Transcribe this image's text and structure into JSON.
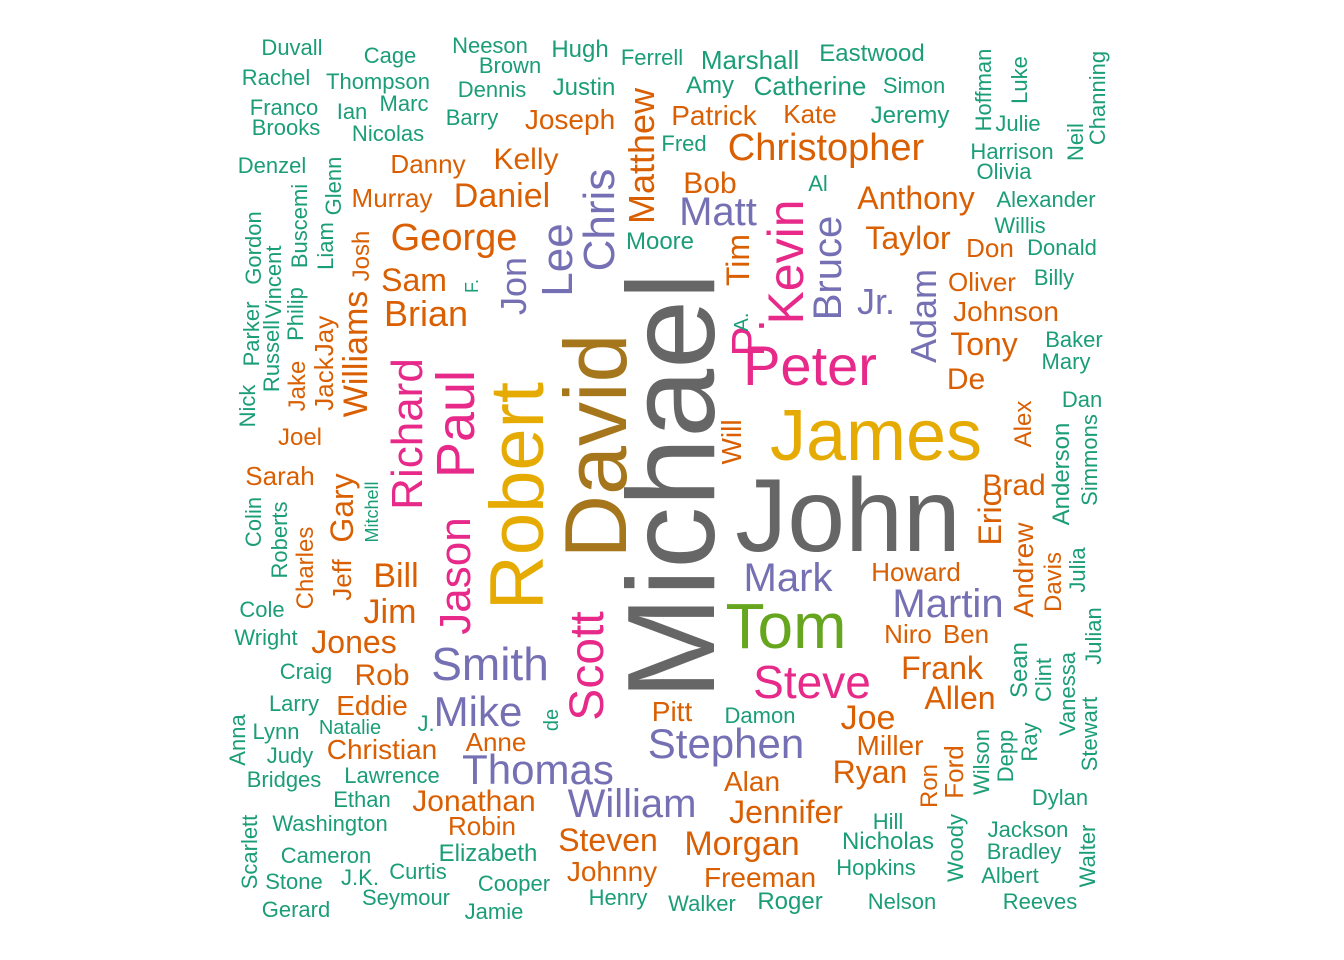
{
  "palette": {
    "c1": "#1b9e77",
    "c2": "#d95f02",
    "c3": "#7570b3",
    "c4": "#e7298a",
    "c5": "#66a61e",
    "c6": "#e6ab02",
    "c7": "#a6761d",
    "c8": "#666666"
  },
  "words": [
    {
      "text": "Michael",
      "c": "c8",
      "v": true
    },
    {
      "text": "John",
      "c": "c8",
      "v": false
    },
    {
      "text": "David",
      "c": "c7",
      "v": true
    },
    {
      "text": "James",
      "c": "c6",
      "v": false
    },
    {
      "text": "Robert",
      "c": "c6",
      "v": true
    },
    {
      "text": "Tom",
      "c": "c5",
      "v": false
    },
    {
      "text": "Peter",
      "c": "c4",
      "v": false
    },
    {
      "text": "Paul",
      "c": "c4",
      "v": true
    },
    {
      "text": "Jason",
      "c": "c4",
      "v": true
    },
    {
      "text": "Scott",
      "c": "c4",
      "v": true
    },
    {
      "text": "Richard",
      "c": "c4",
      "v": true
    },
    {
      "text": "Steve",
      "c": "c4",
      "v": false
    },
    {
      "text": "Kevin",
      "c": "c4",
      "v": true
    },
    {
      "text": "P.",
      "c": "c4",
      "v": true
    },
    {
      "text": "Chris",
      "c": "c3",
      "v": true
    },
    {
      "text": "Lee",
      "c": "c3",
      "v": true
    },
    {
      "text": "Jon",
      "c": "c3",
      "v": true
    },
    {
      "text": "Bruce",
      "c": "c3",
      "v": true
    },
    {
      "text": "Matt",
      "c": "c3",
      "v": false
    },
    {
      "text": "Jr.",
      "c": "c3",
      "v": false
    },
    {
      "text": "Adam",
      "c": "c3",
      "v": true
    },
    {
      "text": "Mark",
      "c": "c3",
      "v": false
    },
    {
      "text": "Martin",
      "c": "c3",
      "v": false
    },
    {
      "text": "Smith",
      "c": "c3",
      "v": false
    },
    {
      "text": "Mike",
      "c": "c3",
      "v": false
    },
    {
      "text": "Stephen",
      "c": "c3",
      "v": false
    },
    {
      "text": "Thomas",
      "c": "c3",
      "v": false
    },
    {
      "text": "William",
      "c": "c3",
      "v": false
    },
    {
      "text": "Christopher",
      "c": "c2",
      "v": false
    },
    {
      "text": "George",
      "c": "c2",
      "v": false
    },
    {
      "text": "Daniel",
      "c": "c2",
      "v": false
    },
    {
      "text": "Brian",
      "c": "c2",
      "v": false
    },
    {
      "text": "Sam",
      "c": "c2",
      "v": false
    },
    {
      "text": "Williams",
      "c": "c2",
      "v": true
    },
    {
      "text": "Bill",
      "c": "c2",
      "v": false
    },
    {
      "text": "Jim",
      "c": "c2",
      "v": false
    },
    {
      "text": "Gary",
      "c": "c2",
      "v": true
    },
    {
      "text": "Jones",
      "c": "c2",
      "v": false
    },
    {
      "text": "Rob",
      "c": "c2",
      "v": false
    },
    {
      "text": "Eddie",
      "c": "c2",
      "v": false
    },
    {
      "text": "Christian",
      "c": "c2",
      "v": false
    },
    {
      "text": "Anne",
      "c": "c2",
      "v": false
    },
    {
      "text": "Jonathan",
      "c": "c2",
      "v": false
    },
    {
      "text": "Robin",
      "c": "c2",
      "v": false
    },
    {
      "text": "Steven",
      "c": "c2",
      "v": false
    },
    {
      "text": "Johnny",
      "c": "c2",
      "v": false
    },
    {
      "text": "Morgan",
      "c": "c2",
      "v": false
    },
    {
      "text": "Freeman",
      "c": "c2",
      "v": false
    },
    {
      "text": "Jennifer",
      "c": "c2",
      "v": false
    },
    {
      "text": "Alan",
      "c": "c2",
      "v": false
    },
    {
      "text": "Ryan",
      "c": "c2",
      "v": false
    },
    {
      "text": "Miller",
      "c": "c2",
      "v": false
    },
    {
      "text": "Joe",
      "c": "c2",
      "v": false
    },
    {
      "text": "Pitt",
      "c": "c2",
      "v": false
    },
    {
      "text": "Allen",
      "c": "c2",
      "v": false
    },
    {
      "text": "Frank",
      "c": "c2",
      "v": false
    },
    {
      "text": "Niro",
      "c": "c2",
      "v": false
    },
    {
      "text": "Ben",
      "c": "c2",
      "v": false
    },
    {
      "text": "Howard",
      "c": "c2",
      "v": false
    },
    {
      "text": "Eric",
      "c": "c2",
      "v": true
    },
    {
      "text": "Brad",
      "c": "c2",
      "v": false
    },
    {
      "text": "De",
      "c": "c2",
      "v": false
    },
    {
      "text": "Tony",
      "c": "c2",
      "v": false
    },
    {
      "text": "Johnson",
      "c": "c2",
      "v": false
    },
    {
      "text": "Oliver",
      "c": "c2",
      "v": false
    },
    {
      "text": "Don",
      "c": "c2",
      "v": false
    },
    {
      "text": "Taylor",
      "c": "c2",
      "v": false
    },
    {
      "text": "Anthony",
      "c": "c2",
      "v": false
    },
    {
      "text": "Kate",
      "c": "c2",
      "v": false
    },
    {
      "text": "Patrick",
      "c": "c2",
      "v": false
    },
    {
      "text": "Matthew",
      "c": "c2",
      "v": true
    },
    {
      "text": "Bob",
      "c": "c2",
      "v": false
    },
    {
      "text": "Tim",
      "c": "c2",
      "v": true
    },
    {
      "text": "Will",
      "c": "c2",
      "v": true
    },
    {
      "text": "Joseph",
      "c": "c2",
      "v": false
    },
    {
      "text": "Kelly",
      "c": "c2",
      "v": false
    },
    {
      "text": "Danny",
      "c": "c2",
      "v": false
    },
    {
      "text": "Murray",
      "c": "c2",
      "v": false
    },
    {
      "text": "Josh",
      "c": "c2",
      "v": true
    },
    {
      "text": "Jay",
      "c": "c2",
      "v": true
    },
    {
      "text": "Jack",
      "c": "c2",
      "v": true
    },
    {
      "text": "Jake",
      "c": "c2",
      "v": true
    },
    {
      "text": "Joel",
      "c": "c2",
      "v": false
    },
    {
      "text": "Sarah",
      "c": "c2",
      "v": false
    },
    {
      "text": "Jeff",
      "c": "c2",
      "v": true
    },
    {
      "text": "Charles",
      "c": "c2",
      "v": true
    },
    {
      "text": "Andrew",
      "c": "c2",
      "v": true
    },
    {
      "text": "Davis",
      "c": "c2",
      "v": true
    },
    {
      "text": "Alex",
      "c": "c2",
      "v": true
    },
    {
      "text": "Ford",
      "c": "c2",
      "v": true
    },
    {
      "text": "Ron",
      "c": "c2",
      "v": true
    },
    {
      "text": "Duvall",
      "c": "c1",
      "v": false
    },
    {
      "text": "Cage",
      "c": "c1",
      "v": false
    },
    {
      "text": "Neeson",
      "c": "c1",
      "v": false
    },
    {
      "text": "Hugh",
      "c": "c1",
      "v": false
    },
    {
      "text": "Ferrell",
      "c": "c1",
      "v": false
    },
    {
      "text": "Marshall",
      "c": "c1",
      "v": false
    },
    {
      "text": "Eastwood",
      "c": "c1",
      "v": false
    },
    {
      "text": "Brown",
      "c": "c1",
      "v": false
    },
    {
      "text": "Rachel",
      "c": "c1",
      "v": false
    },
    {
      "text": "Thompson",
      "c": "c1",
      "v": false
    },
    {
      "text": "Dennis",
      "c": "c1",
      "v": false
    },
    {
      "text": "Justin",
      "c": "c1",
      "v": false
    },
    {
      "text": "Amy",
      "c": "c1",
      "v": false
    },
    {
      "text": "Catherine",
      "c": "c1",
      "v": false
    },
    {
      "text": "Simon",
      "c": "c1",
      "v": false
    },
    {
      "text": "Franco",
      "c": "c1",
      "v": false
    },
    {
      "text": "Marc",
      "c": "c1",
      "v": false
    },
    {
      "text": "Ian",
      "c": "c1",
      "v": false
    },
    {
      "text": "Barry",
      "c": "c1",
      "v": false
    },
    {
      "text": "Jeremy",
      "c": "c1",
      "v": false
    },
    {
      "text": "Brooks",
      "c": "c1",
      "v": false
    },
    {
      "text": "Nicolas",
      "c": "c1",
      "v": false
    },
    {
      "text": "Fred",
      "c": "c1",
      "v": false
    },
    {
      "text": "Denzel",
      "c": "c1",
      "v": false
    },
    {
      "text": "Al",
      "c": "c1",
      "v": false
    },
    {
      "text": "Moore",
      "c": "c1",
      "v": false
    },
    {
      "text": "Hoffman",
      "c": "c1",
      "v": true
    },
    {
      "text": "Luke",
      "c": "c1",
      "v": true
    },
    {
      "text": "Julie",
      "c": "c1",
      "v": false
    },
    {
      "text": "Channing",
      "c": "c1",
      "v": true
    },
    {
      "text": "Neil",
      "c": "c1",
      "v": true
    },
    {
      "text": "Harrison",
      "c": "c1",
      "v": false
    },
    {
      "text": "Olivia",
      "c": "c1",
      "v": false
    },
    {
      "text": "Alexander",
      "c": "c1",
      "v": false
    },
    {
      "text": "Willis",
      "c": "c1",
      "v": false
    },
    {
      "text": "Donald",
      "c": "c1",
      "v": false
    },
    {
      "text": "Billy",
      "c": "c1",
      "v": false
    },
    {
      "text": "Baker",
      "c": "c1",
      "v": false
    },
    {
      "text": "Mary",
      "c": "c1",
      "v": false
    },
    {
      "text": "Dan",
      "c": "c1",
      "v": false
    },
    {
      "text": "Anderson",
      "c": "c1",
      "v": true
    },
    {
      "text": "Simmons",
      "c": "c1",
      "v": true
    },
    {
      "text": "Julia",
      "c": "c1",
      "v": true
    },
    {
      "text": "Julian",
      "c": "c1",
      "v": true
    },
    {
      "text": "Sean",
      "c": "c1",
      "v": true
    },
    {
      "text": "Clint",
      "c": "c1",
      "v": true
    },
    {
      "text": "Vanessa",
      "c": "c1",
      "v": true
    },
    {
      "text": "Stewart",
      "c": "c1",
      "v": true
    },
    {
      "text": "Ray",
      "c": "c1",
      "v": true
    },
    {
      "text": "Depp",
      "c": "c1",
      "v": true
    },
    {
      "text": "Wilson",
      "c": "c1",
      "v": true
    },
    {
      "text": "Dylan",
      "c": "c1",
      "v": false
    },
    {
      "text": "Jackson",
      "c": "c1",
      "v": false
    },
    {
      "text": "Bradley",
      "c": "c1",
      "v": false
    },
    {
      "text": "Albert",
      "c": "c1",
      "v": false
    },
    {
      "text": "Walter",
      "c": "c1",
      "v": true
    },
    {
      "text": "Reeves",
      "c": "c1",
      "v": false
    },
    {
      "text": "Nelson",
      "c": "c1",
      "v": false
    },
    {
      "text": "Woody",
      "c": "c1",
      "v": true
    },
    {
      "text": "Hill",
      "c": "c1",
      "v": false
    },
    {
      "text": "Nicholas",
      "c": "c1",
      "v": false
    },
    {
      "text": "Hopkins",
      "c": "c1",
      "v": false
    },
    {
      "text": "Roger",
      "c": "c1",
      "v": false
    },
    {
      "text": "Walker",
      "c": "c1",
      "v": false
    },
    {
      "text": "Henry",
      "c": "c1",
      "v": false
    },
    {
      "text": "Damon",
      "c": "c1",
      "v": false
    },
    {
      "text": "Elizabeth",
      "c": "c1",
      "v": false
    },
    {
      "text": "Cooper",
      "c": "c1",
      "v": false
    },
    {
      "text": "Jamie",
      "c": "c1",
      "v": false
    },
    {
      "text": "Seymour",
      "c": "c1",
      "v": false
    },
    {
      "text": "Curtis",
      "c": "c1",
      "v": false
    },
    {
      "text": "J.K.",
      "c": "c1",
      "v": false
    },
    {
      "text": "Gerard",
      "c": "c1",
      "v": false
    },
    {
      "text": "Stone",
      "c": "c1",
      "v": false
    },
    {
      "text": "Cameron",
      "c": "c1",
      "v": false
    },
    {
      "text": "Scarlett",
      "c": "c1",
      "v": true
    },
    {
      "text": "Washington",
      "c": "c1",
      "v": false
    },
    {
      "text": "Ethan",
      "c": "c1",
      "v": false
    },
    {
      "text": "Lawrence",
      "c": "c1",
      "v": false
    },
    {
      "text": "Bridges",
      "c": "c1",
      "v": false
    },
    {
      "text": "Judy",
      "c": "c1",
      "v": false
    },
    {
      "text": "Anna",
      "c": "c1",
      "v": true
    },
    {
      "text": "Lynn",
      "c": "c1",
      "v": false
    },
    {
      "text": "Natalie",
      "c": "c1",
      "v": false
    },
    {
      "text": "J.",
      "c": "c1",
      "v": false
    },
    {
      "text": "de",
      "c": "c1",
      "v": true
    },
    {
      "text": "Larry",
      "c": "c1",
      "v": false
    },
    {
      "text": "Craig",
      "c": "c1",
      "v": false
    },
    {
      "text": "Wright",
      "c": "c1",
      "v": false
    },
    {
      "text": "Cole",
      "c": "c1",
      "v": false
    },
    {
      "text": "Roberts",
      "c": "c1",
      "v": true
    },
    {
      "text": "Colin",
      "c": "c1",
      "v": true
    },
    {
      "text": "Mitchell",
      "c": "c1",
      "v": true
    },
    {
      "text": "Nick",
      "c": "c1",
      "v": true
    },
    {
      "text": "Russell",
      "c": "c1",
      "v": true
    },
    {
      "text": "Parker",
      "c": "c1",
      "v": true
    },
    {
      "text": "Gordon",
      "c": "c1",
      "v": true
    },
    {
      "text": "Vincent",
      "c": "c1",
      "v": true
    },
    {
      "text": "Philip",
      "c": "c1",
      "v": true
    },
    {
      "text": "Buscemi",
      "c": "c1",
      "v": true
    },
    {
      "text": "Liam",
      "c": "c1",
      "v": true
    },
    {
      "text": "Glenn",
      "c": "c1",
      "v": true
    },
    {
      "text": "F.",
      "c": "c1",
      "v": true
    },
    {
      "text": "A.",
      "c": "c1",
      "v": true
    }
  ]
}
